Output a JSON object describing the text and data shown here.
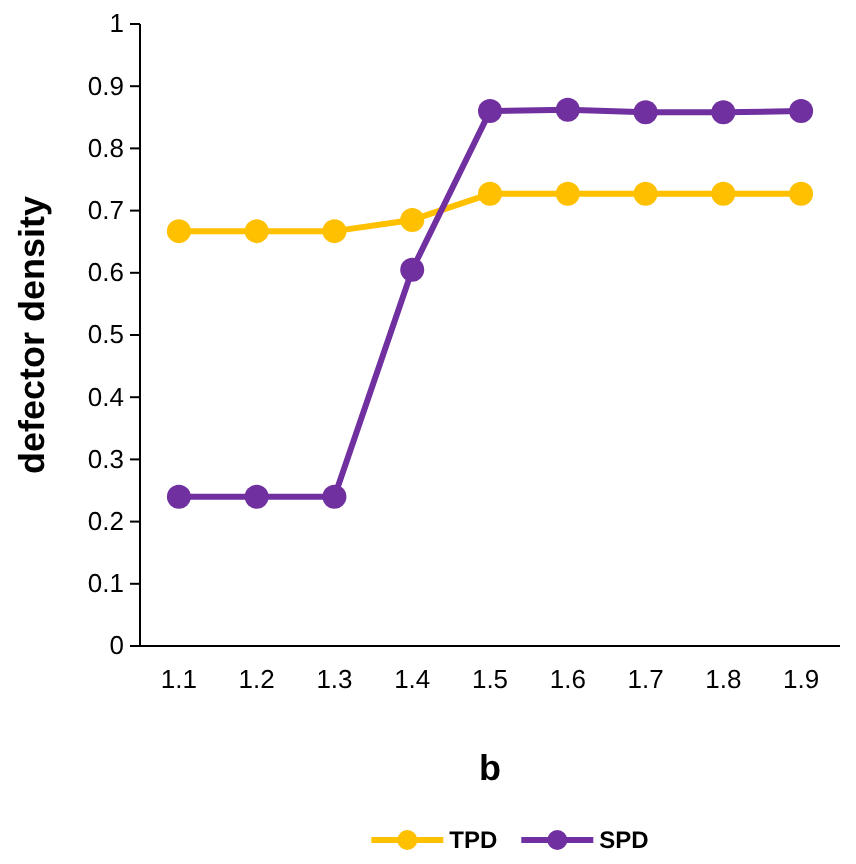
{
  "chart_data": {
    "type": "line",
    "xlabel": "b",
    "ylabel": "defector density",
    "categories": [
      "1.1",
      "1.2",
      "1.3",
      "1.4",
      "1.5",
      "1.6",
      "1.7",
      "1.8",
      "1.9"
    ],
    "series": [
      {
        "name": "TPD",
        "color": "#ffc000",
        "values": [
          0.667,
          0.667,
          0.667,
          0.685,
          0.727,
          0.727,
          0.727,
          0.727,
          0.727
        ]
      },
      {
        "name": "SPD",
        "color": "#7030a0",
        "values": [
          0.24,
          0.24,
          0.24,
          0.605,
          0.86,
          0.862,
          0.858,
          0.858,
          0.86
        ]
      }
    ],
    "ylim": [
      0,
      1
    ],
    "yticks": [
      0,
      0.1,
      0.2,
      0.3,
      0.4,
      0.5,
      0.6,
      0.7,
      0.8,
      0.9,
      1
    ],
    "grid": false,
    "legend": "bottom",
    "marker": "circle",
    "line_style": "solid"
  }
}
